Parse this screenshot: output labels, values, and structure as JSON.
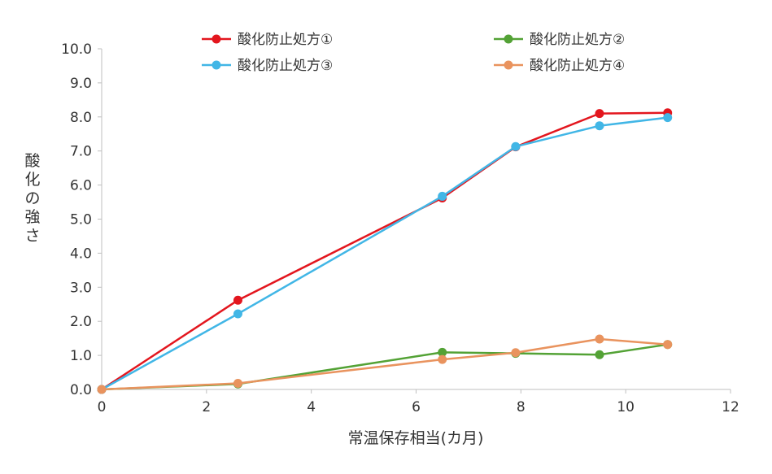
{
  "chart_data": {
    "type": "line",
    "title": "",
    "xlabel": "常温保存相当(カ月)",
    "ylabel": "酸化の強さ",
    "xlim": [
      0,
      12
    ],
    "ylim": [
      0,
      10
    ],
    "x_ticks": [
      "0",
      "2",
      "4",
      "6",
      "8",
      "10",
      "12"
    ],
    "y_ticks": [
      "0.0",
      "1.0",
      "2.0",
      "3.0",
      "4.0",
      "5.0",
      "6.0",
      "7.0",
      "8.0",
      "9.0",
      "10.0"
    ],
    "grid": false,
    "legend_position": "top",
    "series": [
      {
        "name": "酸化防止処方①",
        "color": "#E3161E",
        "points": [
          [
            0,
            0.0
          ],
          [
            2.6,
            2.62
          ],
          [
            6.5,
            5.62
          ],
          [
            7.9,
            7.12
          ],
          [
            9.5,
            8.1
          ],
          [
            10.8,
            8.12
          ]
        ]
      },
      {
        "name": "酸化防止処方②",
        "color": "#53A235",
        "points": [
          [
            0,
            0.0
          ],
          [
            2.6,
            0.16
          ],
          [
            6.5,
            1.09
          ],
          [
            7.9,
            1.06
          ],
          [
            9.5,
            1.02
          ],
          [
            10.8,
            1.32
          ]
        ]
      },
      {
        "name": "酸化防止処方③",
        "color": "#41B6E6",
        "points": [
          [
            0,
            0.0
          ],
          [
            2.6,
            2.22
          ],
          [
            6.5,
            5.67
          ],
          [
            7.9,
            7.13
          ],
          [
            9.5,
            7.74
          ],
          [
            10.8,
            7.98
          ]
        ]
      },
      {
        "name": "酸化防止処方④",
        "color": "#E9935E",
        "points": [
          [
            0,
            0.0
          ],
          [
            2.6,
            0.18
          ],
          [
            6.5,
            0.88
          ],
          [
            7.9,
            1.08
          ],
          [
            9.5,
            1.48
          ],
          [
            10.8,
            1.32
          ]
        ]
      }
    ]
  }
}
